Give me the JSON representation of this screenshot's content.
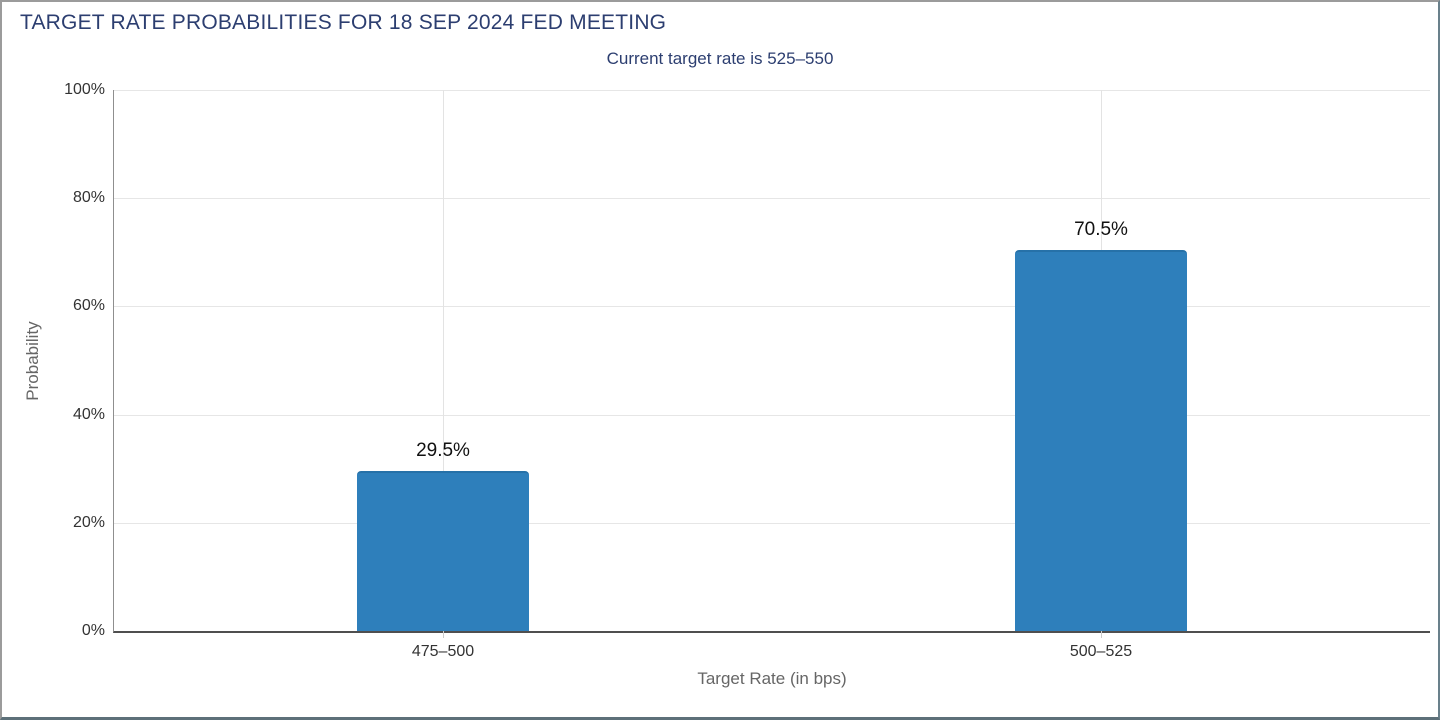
{
  "header": {
    "title": "TARGET RATE PROBABILITIES FOR 18 SEP 2024 FED MEETING",
    "subtitle": "Current target rate is 525–550"
  },
  "colors": {
    "bar": "#2e7fbb",
    "bar_edge": "#2671a8",
    "title_text": "#2c3e70",
    "grid": "#e6e6e6",
    "tick_text": "#333333",
    "axis_title_text": "#666666"
  },
  "chart_data": {
    "type": "bar",
    "title": "TARGET RATE PROBABILITIES FOR 18 SEP 2024 FED MEETING",
    "subtitle": "Current target rate is 525–550",
    "categories": [
      "475–500",
      "500–525"
    ],
    "values": [
      29.5,
      70.5
    ],
    "value_labels": [
      "29.5%",
      "70.5%"
    ],
    "xlabel": "Target Rate (in bps)",
    "ylabel": "Probability",
    "ylim": [
      0,
      100
    ],
    "yticks": [
      0,
      20,
      40,
      60,
      80,
      100
    ],
    "ytick_labels": [
      "0%",
      "20%",
      "40%",
      "60%",
      "80%",
      "100%"
    ],
    "grid": true,
    "legend": false
  }
}
